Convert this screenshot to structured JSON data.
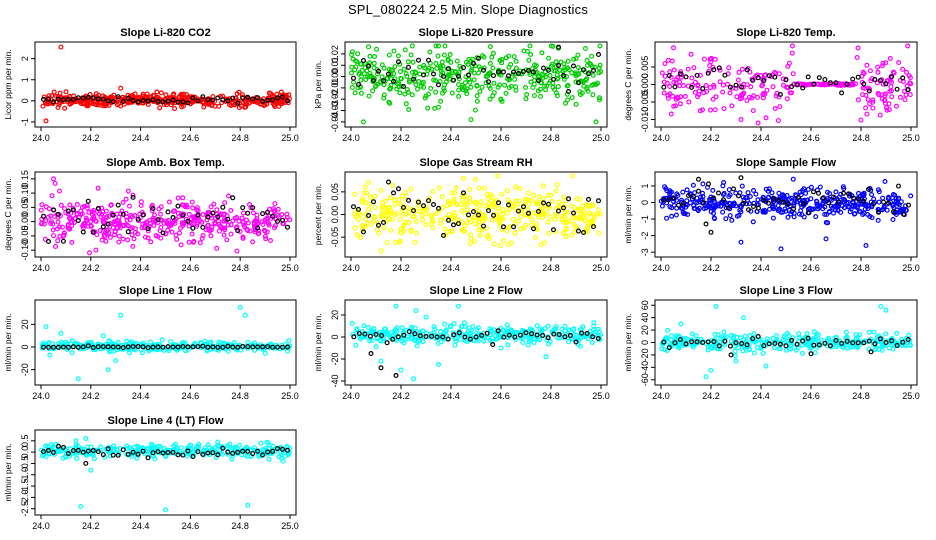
{
  "title": "SPL_080224  2.5 Min. Slope Diagnostics",
  "colors": {
    "black": "#000000",
    "red": "#ff0000",
    "green": "#00cc00",
    "magenta": "#ff00ff",
    "yellow": "#ffff00",
    "blue": "#0000ff",
    "cyan": "#00ffff"
  },
  "chart_data": [
    {
      "type": "scatter",
      "title": "Slope Li-820 CO2",
      "ylabel": "Licor ppm per min.",
      "xlim": [
        24.0,
        25.0
      ],
      "ylim": [
        -1.05,
        2.6
      ],
      "xticks": [
        "24.0",
        "24.2",
        "24.4",
        "24.6",
        "24.8",
        "25.0"
      ],
      "yticks": [
        -1,
        0,
        1,
        2
      ],
      "ytick_labels": [
        "-1",
        "0",
        "1",
        "2"
      ],
      "series": [
        {
          "name": "points",
          "color": "red",
          "center": 0.02,
          "sd": 0.15,
          "n": 420,
          "outliers": [
            [
              24.08,
              2.55
            ],
            [
              24.02,
              -0.95
            ],
            [
              24.32,
              0.6
            ]
          ]
        },
        {
          "name": "reference",
          "color": "black",
          "center": 0.05,
          "sd": 0.08,
          "n": 50,
          "outliers": []
        }
      ]
    },
    {
      "type": "scatter",
      "title": "Slope Li-820 Pressure",
      "ylabel": "kPa per min.",
      "xlim": [
        24.0,
        25.0
      ],
      "ylim": [
        -0.041,
        0.027
      ],
      "xticks": [
        "24.0",
        "24.2",
        "24.4",
        "24.6",
        "24.8",
        "25.0"
      ],
      "yticks": [
        -0.04,
        -0.03,
        -0.02,
        -0.01,
        0.0,
        0.01,
        0.02
      ],
      "ytick_labels": [
        "-0.04",
        "-0.03",
        "-0.02",
        "-0.01",
        "0.00",
        "0.01",
        "0.02"
      ],
      "series": [
        {
          "name": "points",
          "color": "green",
          "center": 0.0,
          "sd": 0.011,
          "n": 420,
          "outliers": [
            [
              24.05,
              -0.04
            ],
            [
              24.48,
              -0.038
            ],
            [
              24.98,
              -0.04
            ],
            [
              24.83,
              0.025
            ]
          ]
        },
        {
          "name": "reference",
          "color": "black",
          "center": 0.003,
          "sd": 0.006,
          "n": 50,
          "outliers": [
            [
              24.83,
              0.026
            ]
          ]
        }
      ]
    },
    {
      "type": "scatter",
      "title": "Slope Li-820 Temp.",
      "ylabel": "degrees C per min.",
      "xlim": [
        24.0,
        25.0
      ],
      "ylim": [
        -0.011,
        0.011
      ],
      "xticks": [
        "24.0",
        "24.2",
        "24.4",
        "24.6",
        "24.8",
        "25.0"
      ],
      "yticks": [
        -0.01,
        -0.005,
        0.0,
        0.005
      ],
      "ytick_labels": [
        "-0.010",
        "-0.005",
        "0.000",
        "0.005"
      ],
      "series": [
        {
          "name": "points",
          "color": "magenta",
          "center": 0.0,
          "sd": 0.004,
          "n": 300,
          "outliers": [
            [
              24.05,
              0.0105
            ],
            [
              24.32,
              -0.01
            ],
            [
              24.42,
              -0.0095
            ]
          ],
          "flat": [
            24.53,
            24.78
          ]
        },
        {
          "name": "reference",
          "color": "black",
          "center": 0.0005,
          "sd": 0.002,
          "n": 45,
          "outliers": []
        }
      ]
    },
    {
      "type": "scatter",
      "title": "Slope Amb. Box Temp.",
      "ylabel": "degrees C per min.",
      "xlim": [
        24.0,
        25.0
      ],
      "ylim": [
        -0.11,
        0.16
      ],
      "xticks": [
        "24.0",
        "24.2",
        "24.4",
        "24.6",
        "24.8",
        "25.0"
      ],
      "yticks": [
        -0.1,
        -0.05,
        0.0,
        0.05,
        0.1,
        0.15
      ],
      "ytick_labels": [
        "-0.10",
        "-0.05",
        "0.00",
        "0.05",
        "0.10",
        "0.15"
      ],
      "series": [
        {
          "name": "points",
          "color": "magenta",
          "center": 0.0,
          "sd": 0.04,
          "n": 420,
          "outliers": [
            [
              24.05,
              0.15
            ],
            [
              24.22,
              -0.1
            ]
          ]
        },
        {
          "name": "reference",
          "color": "black",
          "center": 0.01,
          "sd": 0.03,
          "n": 50,
          "outliers": []
        }
      ]
    },
    {
      "type": "scatter",
      "title": "Slope Gas Stream RH",
      "ylabel": "percent per min.",
      "xlim": [
        24.0,
        25.0
      ],
      "ylim": [
        -0.085,
        0.085
      ],
      "xticks": [
        "24.0",
        "24.2",
        "24.4",
        "24.6",
        "24.8",
        "25.0"
      ],
      "yticks": [
        -0.05,
        0.0,
        0.05
      ],
      "ytick_labels": [
        "-0.05",
        "0.00",
        "0.05"
      ],
      "series": [
        {
          "name": "points",
          "color": "yellow",
          "center": 0.0,
          "sd": 0.028,
          "n": 420,
          "outliers": [
            [
              24.12,
              -0.08
            ],
            [
              24.45,
              0.08
            ]
          ]
        },
        {
          "name": "reference",
          "color": "black",
          "center": 0.0,
          "sd": 0.025,
          "n": 50,
          "outliers": []
        }
      ]
    },
    {
      "type": "scatter",
      "title": "Slope Sample Flow",
      "ylabel": "ml/min per min.",
      "xlim": [
        24.0,
        25.0
      ],
      "ylim": [
        -3.05,
        1.6
      ],
      "xticks": [
        "24.0",
        "24.2",
        "24.4",
        "24.6",
        "24.8",
        "25.0"
      ],
      "yticks": [
        -3,
        -2,
        -1,
        0,
        1
      ],
      "ytick_labels": [
        "-3",
        "-2",
        "-1",
        "0",
        "1"
      ],
      "series": [
        {
          "name": "points",
          "color": "blue",
          "center": -0.05,
          "sd": 0.45,
          "n": 420,
          "outliers": [
            [
              24.32,
              -2.4
            ],
            [
              24.48,
              -2.8
            ],
            [
              24.66,
              -2.2
            ],
            [
              24.82,
              -2.6
            ]
          ]
        },
        {
          "name": "reference",
          "color": "black",
          "center": 0.1,
          "sd": 0.4,
          "n": 50,
          "outliers": [
            [
              24.15,
              1.4
            ],
            [
              24.32,
              1.5
            ],
            [
              24.2,
              -1.8
            ],
            [
              24.18,
              -1.3
            ]
          ]
        }
      ]
    },
    {
      "type": "scatter",
      "title": "Slope Line 1 Flow",
      "ylabel": "ml/min per min.",
      "xlim": [
        24.0,
        25.0
      ],
      "ylim": [
        -30,
        38
      ],
      "xticks": [
        "24.0",
        "24.2",
        "24.4",
        "24.6",
        "24.8",
        "25.0"
      ],
      "yticks": [
        -20,
        0,
        20
      ],
      "ytick_labels": [
        "-20",
        "0",
        "20"
      ],
      "series": [
        {
          "name": "points",
          "color": "cyan",
          "center": 0.5,
          "sd": 2.2,
          "n": 320,
          "outliers": [
            [
              24.02,
              18
            ],
            [
              24.15,
              -28
            ],
            [
              24.27,
              -20
            ],
            [
              24.3,
              -12
            ],
            [
              24.32,
              28
            ],
            [
              24.8,
              35
            ],
            [
              24.82,
              28
            ],
            [
              24.25,
              10
            ],
            [
              24.08,
              12
            ]
          ]
        },
        {
          "name": "reference",
          "color": "black",
          "center": 0.0,
          "sd": 0.3,
          "n": 50,
          "outliers": []
        }
      ]
    },
    {
      "type": "scatter",
      "title": "Slope Line 2 Flow",
      "ylabel": "ml/min per min.",
      "xlim": [
        24.0,
        25.0
      ],
      "ylim": [
        -40,
        30
      ],
      "xticks": [
        "24.0",
        "24.2",
        "24.4",
        "24.6",
        "24.8",
        "25.0"
      ],
      "yticks": [
        -40,
        -20,
        0,
        20
      ],
      "ytick_labels": [
        "-40",
        "-20",
        "0",
        "20"
      ],
      "series": [
        {
          "name": "points",
          "color": "cyan",
          "center": 2.0,
          "sd": 4.0,
          "n": 320,
          "outliers": [
            [
              24.12,
              -22
            ],
            [
              24.2,
              -30
            ],
            [
              24.25,
              -38
            ],
            [
              24.35,
              -25
            ],
            [
              24.18,
              28
            ],
            [
              24.26,
              24
            ],
            [
              24.43,
              28
            ],
            [
              24.6,
              -10
            ],
            [
              24.78,
              -18
            ],
            [
              24.3,
              18
            ]
          ]
        },
        {
          "name": "reference",
          "color": "black",
          "center": 1.0,
          "sd": 2.5,
          "n": 45,
          "outliers": [
            [
              24.12,
              -28
            ],
            [
              24.18,
              -35
            ],
            [
              24.08,
              -15
            ]
          ]
        }
      ]
    },
    {
      "type": "scatter",
      "title": "Slope Line 3 Flow",
      "ylabel": "ml/min per min.",
      "xlim": [
        24.0,
        25.0
      ],
      "ylim": [
        -62,
        62
      ],
      "xticks": [
        "24.0",
        "24.2",
        "24.4",
        "24.6",
        "24.8",
        "25.0"
      ],
      "yticks": [
        -60,
        -40,
        -20,
        0,
        20,
        40,
        60
      ],
      "ytick_labels": [
        "-60",
        "-40",
        "-20",
        "0",
        "20",
        "40",
        "60"
      ],
      "series": [
        {
          "name": "points",
          "color": "cyan",
          "center": 0.0,
          "sd": 7.0,
          "n": 320,
          "outliers": [
            [
              24.18,
              -55
            ],
            [
              24.2,
              -45
            ],
            [
              24.22,
              58
            ],
            [
              24.3,
              -30
            ],
            [
              24.33,
              40
            ],
            [
              24.88,
              58
            ],
            [
              24.9,
              52
            ],
            [
              24.42,
              -38
            ],
            [
              24.08,
              30
            ]
          ]
        },
        {
          "name": "reference",
          "color": "black",
          "center": 0.0,
          "sd": 4.0,
          "n": 45,
          "outliers": [
            [
              24.28,
              -20
            ],
            [
              24.6,
              -18
            ],
            [
              24.84,
              -15
            ]
          ]
        }
      ]
    },
    {
      "type": "scatter",
      "title": "Slope Line 4 (LT) Flow",
      "ylabel": "ml/min per min.",
      "xlim": [
        24.0,
        25.0
      ],
      "ylim": [
        -2.6,
        0.8
      ],
      "xticks": [
        "24.0",
        "24.2",
        "24.4",
        "24.6",
        "24.8",
        "25.0"
      ],
      "yticks": [
        -2.5,
        -2.0,
        -1.5,
        -1.0,
        -0.5,
        0.0,
        0.5
      ],
      "ytick_labels": [
        "-2.5",
        "-2.0",
        "-1.5",
        "-1.0",
        "-0.5",
        "0.0",
        "0.5"
      ],
      "series": [
        {
          "name": "points",
          "color": "cyan",
          "center": 0.05,
          "sd": 0.15,
          "n": 320,
          "outliers": [
            [
              24.16,
              -2.4
            ],
            [
              24.5,
              -2.55
            ],
            [
              24.83,
              -2.35
            ],
            [
              24.18,
              0.6
            ],
            [
              24.2,
              -0.8
            ],
            [
              24.14,
              0.5
            ]
          ]
        },
        {
          "name": "reference",
          "color": "black",
          "center": 0.0,
          "sd": 0.1,
          "n": 50,
          "outliers": [
            [
              24.18,
              -0.5
            ]
          ]
        }
      ]
    }
  ]
}
